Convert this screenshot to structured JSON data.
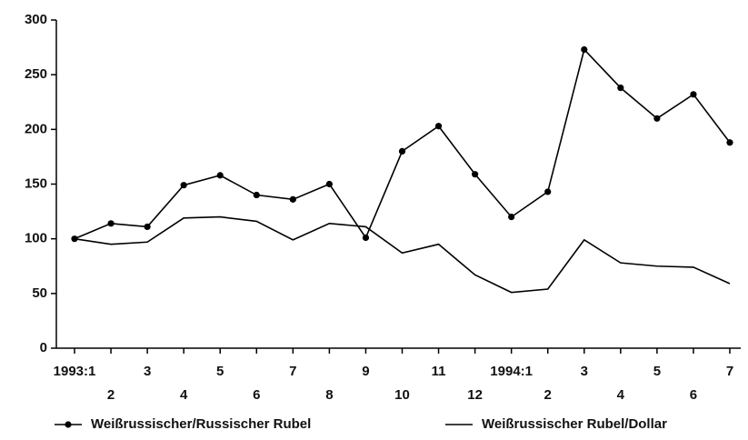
{
  "chart_data": {
    "type": "line",
    "categories": [
      "1993:1",
      "2",
      "3",
      "4",
      "5",
      "6",
      "7",
      "8",
      "9",
      "10",
      "11",
      "12",
      "1994:1",
      "2",
      "3",
      "4",
      "5",
      "6",
      "7"
    ],
    "series": [
      {
        "name": "Weißrussischer/Russischer Rubel",
        "color": "#000000",
        "marker": true,
        "values": [
          100,
          114,
          111,
          149,
          158,
          140,
          136,
          150,
          101,
          180,
          203,
          159,
          120,
          143,
          273,
          238,
          210,
          232,
          188
        ]
      },
      {
        "name": "Weißrussischer Rubel/Dollar",
        "color": "#000000",
        "marker": false,
        "values": [
          100,
          95,
          97,
          119,
          120,
          116,
          99,
          114,
          111,
          87,
          95,
          67,
          51,
          54,
          99,
          78,
          75,
          74,
          59
        ]
      }
    ],
    "ylim": [
      0,
      300
    ],
    "yticks": [
      0,
      50,
      100,
      150,
      200,
      250,
      300
    ],
    "grid": false
  }
}
